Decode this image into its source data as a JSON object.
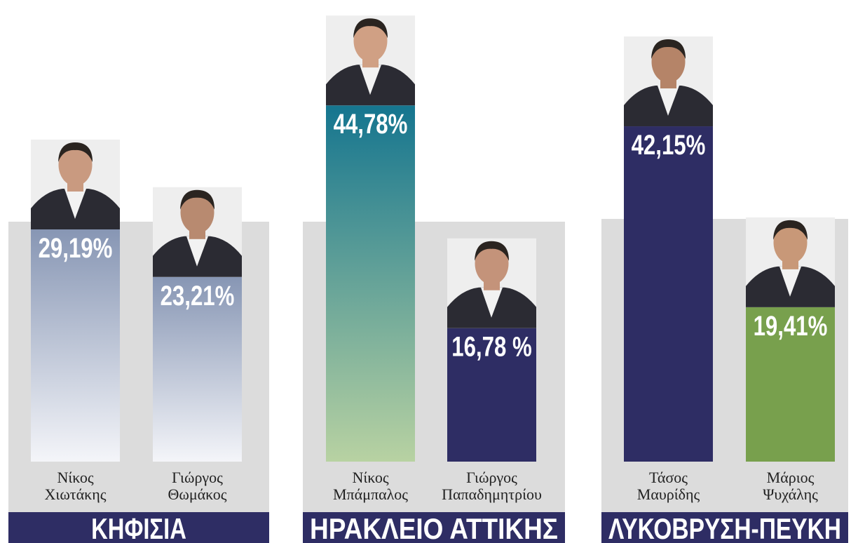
{
  "chart_data": [
    {
      "type": "bar",
      "title": "ΚΗΦΙΣΙΑ",
      "categories": [
        [
          "Νίκος",
          "Χιωτάκης"
        ],
        [
          "Γιώργος",
          "Θωμάκος"
        ]
      ],
      "values": [
        29.19,
        23.21
      ],
      "value_labels": [
        "29,19%",
        "23,21%"
      ],
      "colors": [
        [
          "#8796b4",
          "#f4f5f9"
        ],
        [
          "#8796b4",
          "#f4f5f9"
        ]
      ]
    },
    {
      "type": "bar",
      "title": "ΗΡΑΚΛΕΙΟ ΑΤΤΙΚΗΣ",
      "categories": [
        [
          "Νίκος",
          "Μπάμπαλος"
        ],
        [
          "Γιώργος",
          "Παπαδημητρίου"
        ]
      ],
      "values": [
        44.78,
        16.78
      ],
      "value_labels": [
        "44,78%",
        "16,78 %"
      ],
      "colors": [
        [
          "#15758f",
          "#b8d2a2"
        ],
        "#2e2d64"
      ]
    },
    {
      "type": "bar",
      "title": "ΛΥΚΟΒΡΥΣΗ-ΠΕΥΚΗ",
      "categories": [
        [
          "Τάσος",
          "Μαυρίδης"
        ],
        [
          "Μάριος",
          "Ψυχάλης"
        ]
      ],
      "values": [
        42.15,
        19.41
      ],
      "value_labels": [
        "42,15%",
        "19,41%"
      ],
      "colors": [
        "#2e2d64",
        "#78a04d"
      ]
    }
  ]
}
